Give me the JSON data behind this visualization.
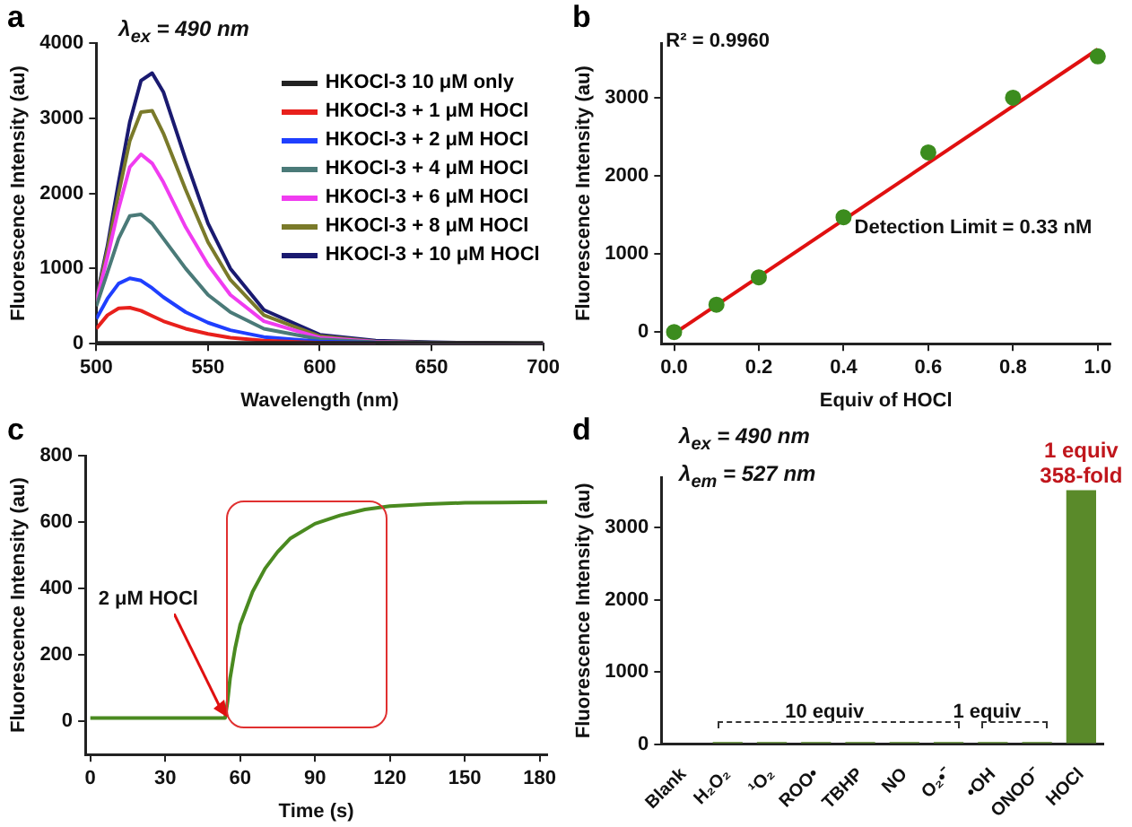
{
  "chart_data": [
    {
      "type": "line",
      "title": "a",
      "xlabel": "Wavelength (nm)",
      "ylabel": "Fluorescence Intensity (au)",
      "annotations": [
        "λ$_{ex}$ = 490 nm"
      ],
      "legend": "top right",
      "x": [
        500,
        505,
        510,
        515,
        520,
        525,
        530,
        540,
        550,
        560,
        575,
        600,
        625,
        650,
        700
      ],
      "xlim": [
        500,
        700
      ],
      "xticks": [
        500,
        550,
        600,
        650,
        700
      ],
      "ylim": [
        0,
        4000
      ],
      "yticks": [
        0,
        1000,
        2000,
        3000,
        4000
      ],
      "series": [
        {
          "name": "HKOCl-3 10 μM only",
          "color": "#222222",
          "values": [
            10,
            10,
            10,
            10,
            10,
            10,
            10,
            10,
            10,
            10,
            10,
            10,
            10,
            10,
            10
          ]
        },
        {
          "name": "HKOCl-3 + 1 μM HOCl",
          "color": "#e8201c",
          "values": [
            200,
            380,
            470,
            480,
            440,
            370,
            300,
            200,
            130,
            80,
            40,
            10,
            0,
            null,
            null
          ]
        },
        {
          "name": "HKOCl-3 + 2 μM HOCl",
          "color": "#1f3fff",
          "values": [
            330,
            600,
            800,
            870,
            840,
            740,
            620,
            420,
            280,
            180,
            90,
            30,
            10,
            null,
            null
          ]
        },
        {
          "name": "HKOCl-3 + 4 μM HOCl",
          "color": "#4a7a78",
          "values": [
            500,
            950,
            1400,
            1700,
            1720,
            1600,
            1400,
            1000,
            650,
            420,
            200,
            60,
            20,
            10,
            0
          ]
        },
        {
          "name": "HKOCl-3 + 6 μM HOCl",
          "color": "#f03cf0",
          "values": [
            560,
            1150,
            1800,
            2350,
            2520,
            2400,
            2150,
            1550,
            1050,
            650,
            300,
            80,
            25,
            10,
            0
          ]
        },
        {
          "name": "HKOCl-3 + 8 μM HOCl",
          "color": "#7a7a2a",
          "values": [
            580,
            1250,
            2000,
            2700,
            3080,
            3100,
            2800,
            2050,
            1350,
            850,
            380,
            100,
            30,
            15,
            0
          ]
        },
        {
          "name": "HKOCl-3 + 10 μM HOCl",
          "color": "#1a1a70",
          "values": [
            600,
            1300,
            2150,
            2950,
            3500,
            3600,
            3350,
            2450,
            1600,
            1000,
            450,
            120,
            40,
            20,
            0
          ]
        }
      ]
    },
    {
      "type": "scatter",
      "title": "b",
      "xlabel": "Equiv of HOCl",
      "ylabel": "Fluorescence Intensity (au)",
      "annotations": [
        "R² = 0.9960",
        "Detection Limit = 0.33 nM"
      ],
      "xlim": [
        -0.03,
        1.03
      ],
      "xticks": [
        {
          "value": 0,
          "label": "0.0"
        },
        {
          "value": 0.2,
          "label": "0.2"
        },
        {
          "value": 0.4,
          "label": "0.4"
        },
        {
          "value": 0.6,
          "label": "0.6"
        },
        {
          "value": 0.8,
          "label": "0.8"
        },
        {
          "value": 1,
          "label": "1.0"
        }
      ],
      "ylim": [
        -150,
        3700
      ],
      "yticks": [
        0,
        1000,
        2000,
        3000
      ],
      "series": [
        {
          "color": "#3c8c1e",
          "marker": "circle",
          "x": [
            0,
            0.1,
            0.2,
            0.4,
            0.6,
            0.8,
            1
          ],
          "values": [
            0,
            350,
            700,
            1470,
            2300,
            3000,
            3530
          ]
        },
        {
          "type": "line",
          "color": "#e01010",
          "x": [
            0,
            1
          ],
          "values": [
            -20,
            3620
          ]
        }
      ]
    },
    {
      "type": "line",
      "title": "c",
      "xlabel": "Time (s)",
      "ylabel": "Fluorescence Intensity (au)",
      "annotations": [
        {
          "text": "2 μM HOCl",
          "x": 55,
          "y": 10
        }
      ],
      "x": [
        0,
        20,
        40,
        54,
        55,
        56,
        58,
        60,
        65,
        70,
        75,
        80,
        90,
        100,
        110,
        120,
        135,
        150,
        165,
        183
      ],
      "values": [
        10,
        10,
        10,
        10,
        60,
        130,
        220,
        290,
        390,
        460,
        510,
        550,
        595,
        620,
        638,
        648,
        654,
        658,
        659,
        660
      ],
      "color": "#4a8a20",
      "xlim": [
        -2,
        183
      ],
      "xticks": [
        0,
        30,
        60,
        90,
        120,
        150,
        180
      ],
      "ylim": [
        -100,
        800
      ],
      "yticks": [
        0,
        200,
        400,
        600,
        800
      ]
    },
    {
      "type": "bar",
      "title": "d",
      "ylabel": "Fluorescence Intensity (au)",
      "annotations": [
        "λ$_{ex}$ = 490 nm",
        "λ$_{em}$ = 527 nm",
        "10 equiv",
        "1 equiv",
        {
          "text": "1 equiv\n358-fold",
          "x": "HOCl",
          "y": 3520
        }
      ],
      "categories": [
        "Blank",
        "H₂O₂",
        "¹O₂",
        "ROO•",
        "TBHP",
        "NO",
        "O₂•⁻",
        "•OH",
        "ONOO⁻",
        "HOCl"
      ],
      "values": [
        null,
        30,
        30,
        30,
        30,
        30,
        30,
        30,
        30,
        3520
      ],
      "color": "#5a8a2a",
      "ylim": [
        0,
        3700
      ],
      "yticks": [
        0,
        1000,
        2000,
        3000
      ]
    }
  ]
}
